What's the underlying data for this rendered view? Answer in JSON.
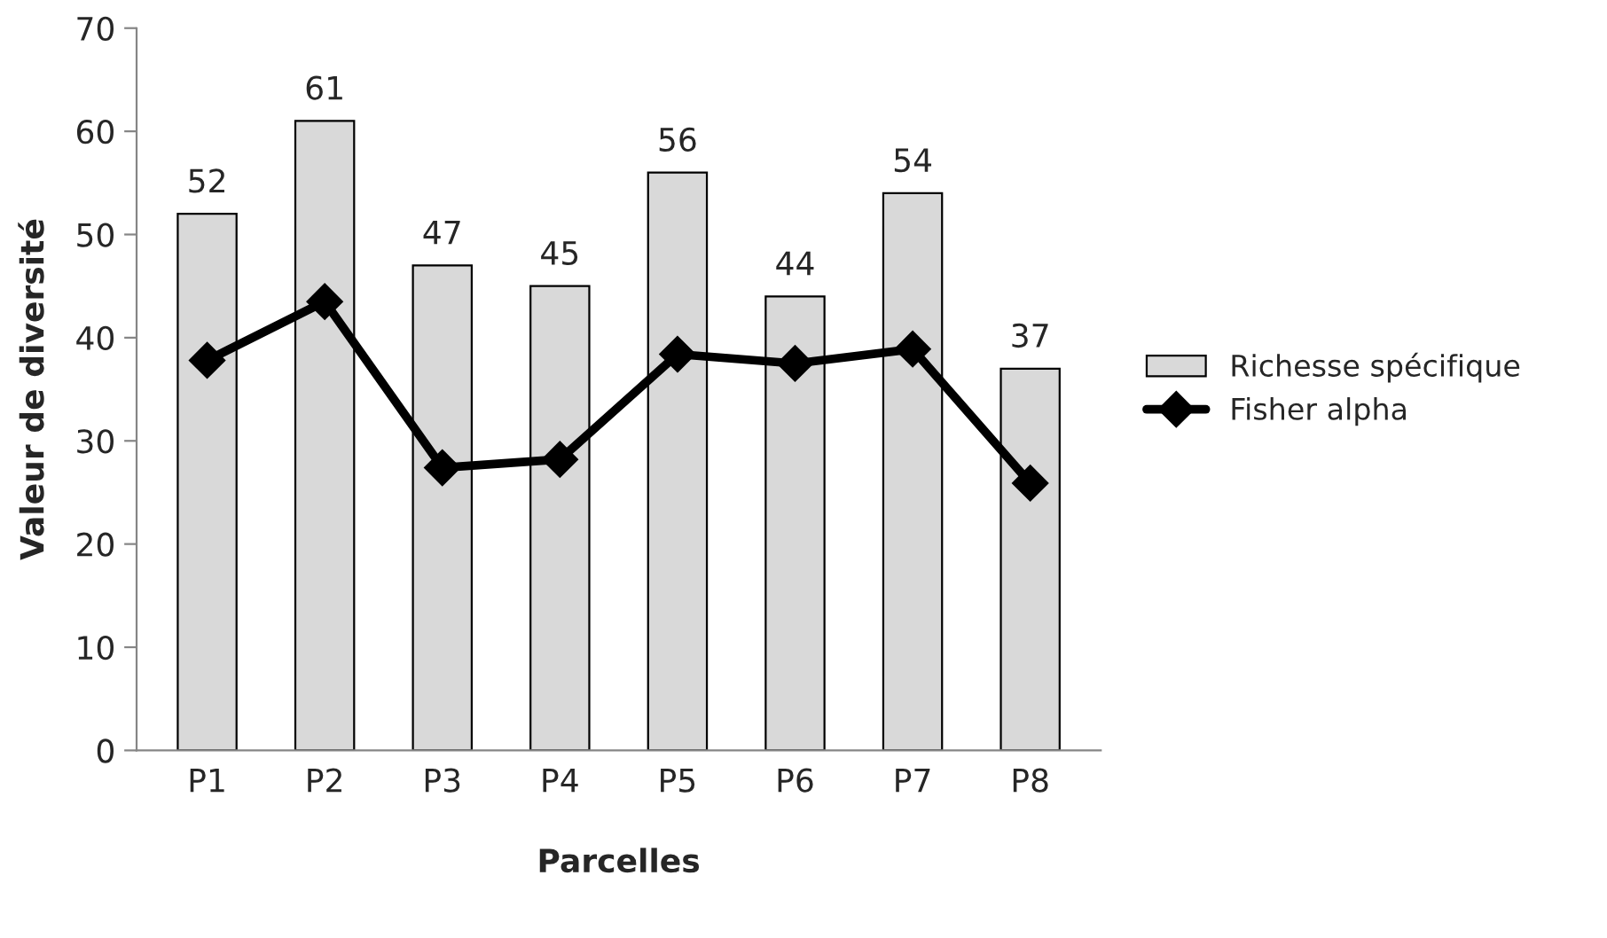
{
  "chart_data": {
    "type": "bar",
    "xlabel": "Parcelles",
    "ylabel": "Valeur de diversité",
    "categories": [
      "P1",
      "P2",
      "P3",
      "P4",
      "P5",
      "P6",
      "P7",
      "P8"
    ],
    "series": [
      {
        "name": "Richesse spécifique",
        "color": "#d9d9d9",
        "values": [
          52,
          61,
          47,
          45,
          56,
          44,
          54,
          37
        ],
        "value_labels": [
          "52",
          "61",
          "47",
          "45",
          "56",
          "44",
          "54",
          "37"
        ]
      },
      {
        "name": "Fisher alpha",
        "type": "line",
        "color": "#000000",
        "marker": "diamond",
        "line_style": "solid",
        "values": [
          37.8,
          43.5,
          27.4,
          28.2,
          38.4,
          37.5,
          38.9,
          25.9
        ]
      }
    ],
    "ylim": [
      0,
      70
    ],
    "yticks": [
      0,
      10,
      20,
      30,
      40,
      50,
      60,
      70
    ],
    "grid": false,
    "legend": "right"
  }
}
